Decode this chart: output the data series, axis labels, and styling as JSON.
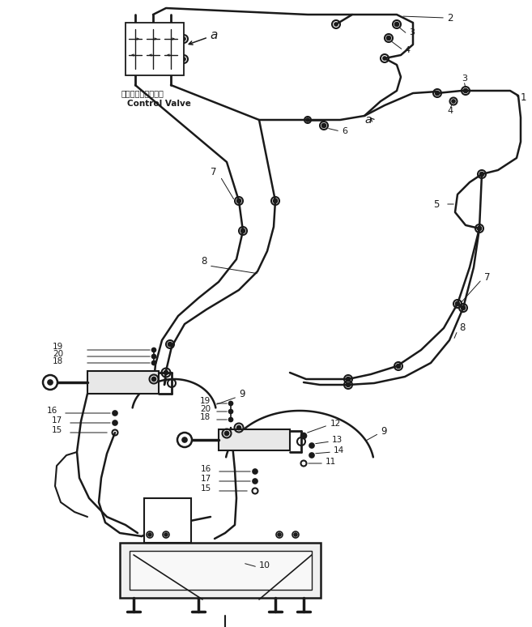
{
  "bg_color": "#ffffff",
  "lc": "#1a1a1a",
  "lw": 1.3,
  "tlw": 1.8,
  "fig_width": 6.57,
  "fig_height": 7.74,
  "dpi": 100,
  "control_valve_label_ja": "コントロールバルブ",
  "control_valve_label_en": "Control Valve"
}
